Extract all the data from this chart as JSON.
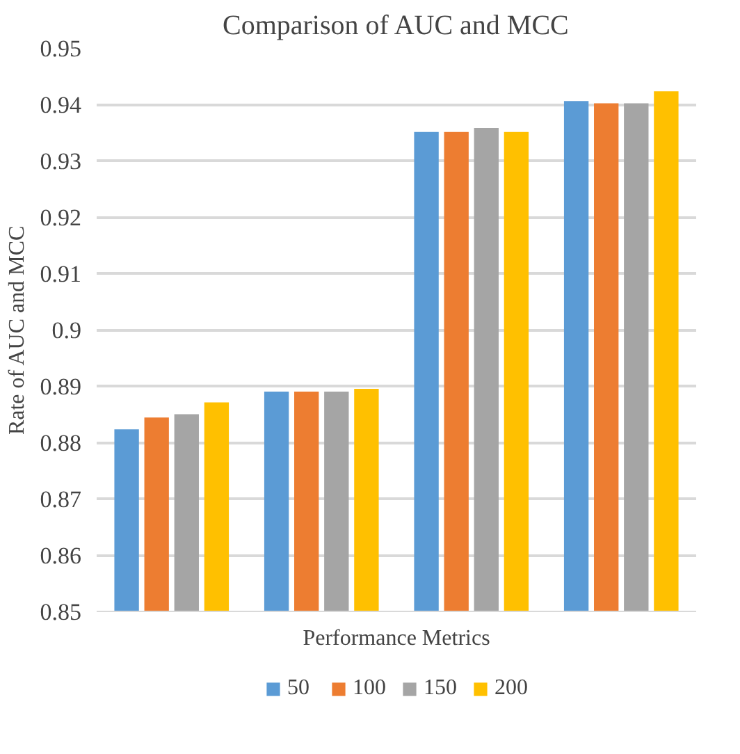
{
  "chart_data": {
    "type": "bar",
    "title": "Comparison of AUC and MCC",
    "xlabel": "Performance Metrics",
    "ylabel": "Rate of AUC and MCC",
    "categories": [
      null,
      null,
      null,
      null
    ],
    "series": [
      {
        "name": "50",
        "color": "#5b9bd5",
        "values": [
          0.8823,
          0.889,
          0.9351,
          0.9406
        ]
      },
      {
        "name": "100",
        "color": "#ed7d31",
        "values": [
          0.8844,
          0.889,
          0.9351,
          0.9402
        ]
      },
      {
        "name": "150",
        "color": "#a5a5a5",
        "values": [
          0.885,
          0.889,
          0.9358,
          0.9402
        ]
      },
      {
        "name": "200",
        "color": "#ffc000",
        "values": [
          0.8871,
          0.8895,
          0.9351,
          0.9423
        ]
      }
    ],
    "ylim": [
      0.85,
      0.95
    ],
    "yticks": [
      0.85,
      0.86,
      0.87,
      0.88,
      0.89,
      0.9,
      0.91,
      0.92,
      0.93,
      0.94,
      0.95
    ],
    "grid": "y",
    "legend": "bottom"
  }
}
